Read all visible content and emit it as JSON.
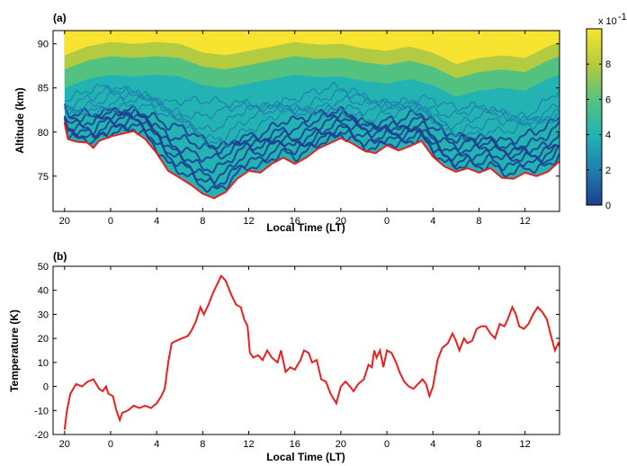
{
  "chart_data": [
    {
      "type": "area",
      "panel_label": "(a)",
      "xlabel": "Local Time (LT)",
      "ylabel": "Altitude (km)",
      "x_unit": "hours since 19 LT (two consecutive nights)",
      "xticks": [
        {
          "x": 1,
          "label": "20"
        },
        {
          "x": 5,
          "label": "0"
        },
        {
          "x": 9,
          "label": "4"
        },
        {
          "x": 13,
          "label": "8"
        },
        {
          "x": 17,
          "label": "12"
        },
        {
          "x": 21,
          "label": "16"
        },
        {
          "x": 25,
          "label": "20"
        },
        {
          "x": 29,
          "label": "0"
        },
        {
          "x": 33,
          "label": "4"
        },
        {
          "x": 37,
          "label": "8"
        },
        {
          "x": 41,
          "label": "12"
        }
      ],
      "xlim": [
        0,
        44
      ],
      "ylim": [
        71,
        91.5
      ],
      "yticks": [
        75,
        80,
        85,
        90
      ],
      "colormap": [
        "#1e3f8f",
        "#1f7fb0",
        "#24b3b3",
        "#56c37e",
        "#b7cb3c",
        "#f6e430"
      ],
      "colorbar": {
        "ticks": [
          "0",
          "2",
          "4",
          "6",
          "8"
        ],
        "multiplier": "x 10",
        "exponent": "-1",
        "range": [
          0,
          1
        ]
      },
      "boundary_color": "#e8201f",
      "lower_boundary_altitude_km": [
        [
          1,
          81.0
        ],
        [
          1.3,
          79.2
        ],
        [
          2,
          78.9
        ],
        [
          3,
          78.8
        ],
        [
          3.5,
          78.2
        ],
        [
          4,
          79.0
        ],
        [
          5,
          79.5
        ],
        [
          6,
          79.8
        ],
        [
          7,
          80.1
        ],
        [
          8,
          79.2
        ],
        [
          9,
          77.6
        ],
        [
          10,
          75.6
        ],
        [
          11,
          74.8
        ],
        [
          12,
          74.0
        ],
        [
          13,
          73.0
        ],
        [
          14,
          72.5
        ],
        [
          15,
          73.2
        ],
        [
          16,
          74.7
        ],
        [
          17,
          75.6
        ],
        [
          18,
          75.4
        ],
        [
          19,
          76.4
        ],
        [
          20,
          77.1
        ],
        [
          21,
          76.4
        ],
        [
          22,
          77.1
        ],
        [
          23,
          78.1
        ],
        [
          24,
          78.7
        ],
        [
          25,
          79.3
        ],
        [
          26,
          78.7
        ],
        [
          27,
          77.9
        ],
        [
          28,
          77.6
        ],
        [
          29,
          78.5
        ],
        [
          30,
          77.9
        ],
        [
          31,
          78.4
        ],
        [
          32,
          79.0
        ],
        [
          33,
          77.2
        ],
        [
          34,
          76.1
        ],
        [
          35,
          75.5
        ],
        [
          36,
          75.9
        ],
        [
          37,
          75.4
        ],
        [
          38,
          75.9
        ],
        [
          39,
          74.8
        ],
        [
          40,
          74.7
        ],
        [
          41,
          75.4
        ],
        [
          42,
          75.0
        ],
        [
          43,
          75.5
        ],
        [
          44,
          76.7
        ]
      ],
      "upper_band_altitude_km": [
        [
          1,
          86.5
        ],
        [
          3,
          87.5
        ],
        [
          5,
          88.0
        ],
        [
          7,
          87.8
        ],
        [
          9,
          88.0
        ],
        [
          11,
          87.8
        ],
        [
          13,
          86.8
        ],
        [
          15,
          86.5
        ],
        [
          17,
          87.0
        ],
        [
          19,
          87.5
        ],
        [
          21,
          88.0
        ],
        [
          23,
          87.7
        ],
        [
          25,
          87.8
        ],
        [
          27,
          87.3
        ],
        [
          29,
          87.0
        ],
        [
          31,
          87.5
        ],
        [
          33,
          86.8
        ],
        [
          35,
          85.5
        ],
        [
          37,
          86.2
        ],
        [
          39,
          86.5
        ],
        [
          41,
          86.2
        ],
        [
          43,
          87.5
        ],
        [
          44,
          88.0
        ]
      ]
    },
    {
      "type": "line",
      "panel_label": "(b)",
      "xlabel": "Local Time (LT)",
      "ylabel": "Temperature (K)",
      "x_unit": "hours since 19 LT (two consecutive nights)",
      "xticks": [
        {
          "x": 1,
          "label": "20"
        },
        {
          "x": 5,
          "label": "0"
        },
        {
          "x": 9,
          "label": "4"
        },
        {
          "x": 13,
          "label": "8"
        },
        {
          "x": 17,
          "label": "12"
        },
        {
          "x": 21,
          "label": "16"
        },
        {
          "x": 25,
          "label": "20"
        },
        {
          "x": 29,
          "label": "0"
        },
        {
          "x": 33,
          "label": "4"
        },
        {
          "x": 37,
          "label": "8"
        },
        {
          "x": 41,
          "label": "12"
        }
      ],
      "xlim": [
        0,
        44
      ],
      "ylim": [
        -20,
        50
      ],
      "yticks": [
        -20,
        -10,
        0,
        10,
        20,
        30,
        40,
        50
      ],
      "line_color": "#e8201f",
      "series": [
        {
          "values": [
            [
              1.0,
              -18
            ],
            [
              1.2,
              -10
            ],
            [
              1.5,
              -3
            ],
            [
              2.0,
              1
            ],
            [
              2.5,
              0
            ],
            [
              3.0,
              2
            ],
            [
              3.5,
              3
            ],
            [
              4.0,
              -1
            ],
            [
              4.3,
              -2
            ],
            [
              4.6,
              0
            ],
            [
              4.8,
              -3
            ],
            [
              5.2,
              -4
            ],
            [
              5.5,
              -10
            ],
            [
              5.8,
              -14
            ],
            [
              6.0,
              -11
            ],
            [
              6.5,
              -10
            ],
            [
              7.0,
              -8
            ],
            [
              7.5,
              -9
            ],
            [
              8.0,
              -8
            ],
            [
              8.5,
              -9
            ],
            [
              9.0,
              -7
            ],
            [
              9.4,
              -4
            ],
            [
              9.7,
              -1
            ],
            [
              10.0,
              10
            ],
            [
              10.3,
              18
            ],
            [
              10.7,
              19
            ],
            [
              11.2,
              20
            ],
            [
              11.7,
              21
            ],
            [
              12.0,
              23
            ],
            [
              12.4,
              27
            ],
            [
              12.8,
              33
            ],
            [
              13.1,
              30
            ],
            [
              13.5,
              34
            ],
            [
              13.9,
              39
            ],
            [
              14.3,
              43
            ],
            [
              14.6,
              46
            ],
            [
              15.0,
              44
            ],
            [
              15.5,
              38
            ],
            [
              15.9,
              34
            ],
            [
              16.3,
              33
            ],
            [
              16.6,
              28
            ],
            [
              16.9,
              25
            ],
            [
              17.1,
              14
            ],
            [
              17.4,
              12
            ],
            [
              17.8,
              13
            ],
            [
              18.2,
              11
            ],
            [
              18.6,
              15
            ],
            [
              19.0,
              12
            ],
            [
              19.5,
              10
            ],
            [
              19.8,
              15
            ],
            [
              20.2,
              6
            ],
            [
              20.6,
              8
            ],
            [
              21.0,
              7
            ],
            [
              21.5,
              11
            ],
            [
              21.8,
              15
            ],
            [
              22.2,
              14
            ],
            [
              22.5,
              10
            ],
            [
              22.9,
              11
            ],
            [
              23.3,
              3
            ],
            [
              23.7,
              2
            ],
            [
              24.1,
              -3
            ],
            [
              24.6,
              -7
            ],
            [
              25.0,
              0
            ],
            [
              25.4,
              2
            ],
            [
              25.8,
              0
            ],
            [
              26.1,
              -2
            ],
            [
              26.5,
              1
            ],
            [
              27.0,
              3
            ],
            [
              27.4,
              9
            ],
            [
              27.7,
              8
            ],
            [
              27.9,
              15
            ],
            [
              28.1,
              12
            ],
            [
              28.4,
              15
            ],
            [
              28.7,
              8
            ],
            [
              29.0,
              15
            ],
            [
              29.4,
              14
            ],
            [
              29.8,
              10
            ],
            [
              30.1,
              6
            ],
            [
              30.5,
              2
            ],
            [
              30.9,
              0
            ],
            [
              31.3,
              -1
            ],
            [
              31.7,
              1
            ],
            [
              32.1,
              3
            ],
            [
              32.4,
              1
            ],
            [
              32.7,
              -4
            ],
            [
              33.0,
              0
            ],
            [
              33.4,
              11
            ],
            [
              33.8,
              16
            ],
            [
              34.3,
              18
            ],
            [
              34.7,
              22
            ],
            [
              35.0,
              19
            ],
            [
              35.3,
              15
            ],
            [
              35.7,
              20
            ],
            [
              36.0,
              18
            ],
            [
              36.4,
              19
            ],
            [
              36.8,
              24
            ],
            [
              37.2,
              25
            ],
            [
              37.6,
              25
            ],
            [
              38.0,
              22
            ],
            [
              38.4,
              20
            ],
            [
              38.8,
              26
            ],
            [
              39.2,
              25
            ],
            [
              39.5,
              28
            ],
            [
              39.9,
              33
            ],
            [
              40.2,
              30
            ],
            [
              40.5,
              25
            ],
            [
              40.9,
              24
            ],
            [
              41.3,
              26
            ],
            [
              41.7,
              30
            ],
            [
              42.1,
              33
            ],
            [
              42.5,
              31
            ],
            [
              42.9,
              28
            ],
            [
              43.2,
              22
            ],
            [
              43.6,
              15
            ],
            [
              43.9,
              18
            ],
            [
              44.0,
              17
            ],
            [
              44.3,
              12
            ]
          ]
        }
      ]
    }
  ]
}
